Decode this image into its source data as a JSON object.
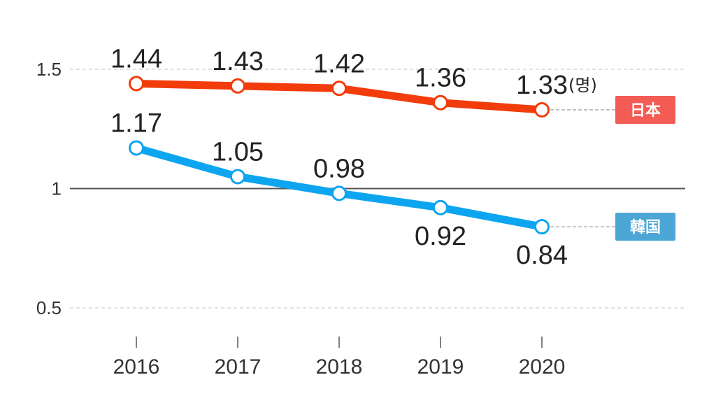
{
  "chart_data": {
    "type": "line",
    "title": "",
    "xlabel": "",
    "ylabel": "",
    "x": [
      "2016",
      "2017",
      "2018",
      "2019",
      "2020"
    ],
    "ylim": [
      0.5,
      1.5
    ],
    "yticks": [
      {
        "value": 0.5,
        "label": "0.5",
        "style": "dashed"
      },
      {
        "value": 1,
        "label": "1",
        "style": "solid"
      },
      {
        "value": 1.5,
        "label": "1.5",
        "style": "dashed"
      }
    ],
    "grid": true,
    "unit_label": "(명)",
    "legend_position": "right",
    "series": [
      {
        "name": "日本",
        "color": "#f23c0c",
        "legend_color": "#f25c54",
        "values": [
          1.44,
          1.43,
          1.42,
          1.36,
          1.33
        ],
        "labels": [
          "1.44",
          "1.43",
          "1.42",
          "1.36",
          "1.33"
        ],
        "label_position": [
          "above",
          "above",
          "above",
          "above",
          "above"
        ]
      },
      {
        "name": "韓国",
        "color": "#0ea5f0",
        "legend_color": "#4ca6d6",
        "values": [
          1.17,
          1.05,
          0.98,
          0.92,
          0.84
        ],
        "labels": [
          "1.17",
          "1.05",
          "0.98",
          "0.92",
          "0.84"
        ],
        "label_position": [
          "above",
          "above",
          "above",
          "below",
          "below"
        ]
      }
    ]
  }
}
